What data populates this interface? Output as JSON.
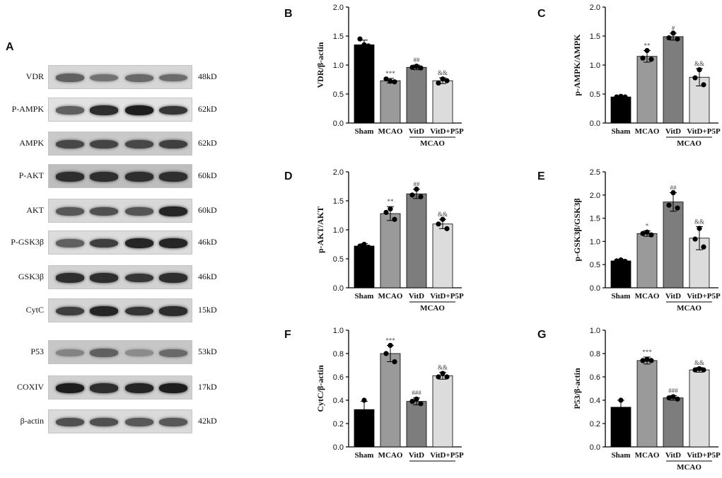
{
  "panel_a": {
    "letter": "A",
    "blots": [
      {
        "name": "VDR",
        "size": "48kD",
        "bg": "#d6d6d6",
        "intensity": [
          0.55,
          0.45,
          0.5,
          0.48
        ]
      },
      {
        "name": "P-AMPK",
        "size": "62kD",
        "bg": "#e2e2e2",
        "intensity": [
          0.55,
          0.85,
          0.95,
          0.8
        ]
      },
      {
        "name": "AMPK",
        "size": "62kD",
        "bg": "#c9c9c9",
        "intensity": [
          0.7,
          0.72,
          0.7,
          0.75
        ]
      },
      {
        "name": "P-AKT",
        "size": "60kD",
        "bg": "#bdbdbd",
        "intensity": [
          0.85,
          0.85,
          0.85,
          0.85
        ]
      },
      {
        "name": "AKT",
        "size": "60kD",
        "bg": "#d8d8d8",
        "intensity": [
          0.6,
          0.65,
          0.62,
          0.9
        ]
      },
      {
        "name": "P-GSK3β",
        "size": "46kD",
        "bg": "#dcdcdc",
        "intensity": [
          0.55,
          0.75,
          0.9,
          0.9
        ]
      },
      {
        "name": "GSK3β",
        "size": "46kD",
        "bg": "#d2d2d2",
        "intensity": [
          0.85,
          0.85,
          0.8,
          0.85
        ]
      },
      {
        "name": "CytC",
        "size": "15kD",
        "bg": "#d4d4d4",
        "intensity": [
          0.75,
          0.9,
          0.8,
          0.85
        ]
      },
      {
        "name": "P53",
        "size": "53kD",
        "bg": "#c6c6c6",
        "intensity": [
          0.35,
          0.55,
          0.3,
          0.5
        ]
      },
      {
        "name": "COXIV",
        "size": "17kD",
        "bg": "#d0d0d0",
        "intensity": [
          0.95,
          0.85,
          0.9,
          0.95
        ]
      },
      {
        "name": "β-actin",
        "size": "42kD",
        "bg": "#dadada",
        "intensity": [
          0.65,
          0.65,
          0.6,
          0.6
        ]
      }
    ]
  },
  "chart_data": [
    {
      "panel": "B",
      "type": "bar",
      "ylabel": "VDR/β-actin",
      "ylim": [
        0,
        2.0
      ],
      "yticks": [
        "0.0",
        "0.5",
        "1.0",
        "1.5",
        "2.0"
      ],
      "categories": [
        "Sham",
        "MCAO",
        "VitD",
        "VitD+P5P"
      ],
      "group_label": "MCAO",
      "values": [
        1.35,
        0.73,
        0.96,
        0.73
      ],
      "errors": [
        0.08,
        0.04,
        0.04,
        0.05
      ],
      "points": [
        [
          1.35,
          1.45,
          1.33
        ],
        [
          0.72,
          0.76,
          0.71
        ],
        [
          0.98,
          0.96,
          0.95
        ],
        [
          0.76,
          0.69,
          0.73
        ]
      ],
      "annotations": [
        "",
        "***",
        "##",
        "&&"
      ]
    },
    {
      "panel": "C",
      "type": "bar",
      "ylabel": "p-AMPK/AMPK",
      "ylim": [
        0,
        2.0
      ],
      "yticks": [
        "0.0",
        "0.5",
        "1.0",
        "1.5",
        "2.0"
      ],
      "categories": [
        "Sham",
        "MCAO",
        "VitD",
        "VitD+P5P"
      ],
      "group_label": "MCAO",
      "values": [
        0.45,
        1.15,
        1.49,
        0.79
      ],
      "errors": [
        0.02,
        0.1,
        0.06,
        0.15
      ],
      "points": [
        [
          0.46,
          0.45,
          0.45
        ],
        [
          1.25,
          1.12,
          1.1
        ],
        [
          1.55,
          1.47,
          1.45
        ],
        [
          0.92,
          0.78,
          0.66
        ]
      ],
      "annotations": [
        "",
        "**",
        "#",
        "&&"
      ]
    },
    {
      "panel": "D",
      "type": "bar",
      "ylabel": "p-AKT/AKT",
      "ylim": [
        0,
        2.0
      ],
      "yticks": [
        "0.0",
        "0.5",
        "1.0",
        "1.5",
        "2.0"
      ],
      "categories": [
        "Sham",
        "MCAO",
        "VitD",
        "VitD+P5P"
      ],
      "group_label": "MCAO",
      "values": [
        0.72,
        1.28,
        1.62,
        1.1
      ],
      "errors": [
        0.04,
        0.12,
        0.08,
        0.08
      ],
      "points": [
        [
          0.75,
          0.72,
          0.7
        ],
        [
          1.36,
          1.3,
          1.18
        ],
        [
          1.7,
          1.6,
          1.57
        ],
        [
          1.18,
          1.1,
          1.02
        ]
      ],
      "annotations": [
        "",
        "**",
        "##",
        "&&"
      ]
    },
    {
      "panel": "E",
      "type": "bar",
      "ylabel": "p-GSK3β/GSK3β",
      "ylim": [
        0,
        2.5
      ],
      "yticks": [
        "0.0",
        "0.5",
        "1.0",
        "1.5",
        "2.0",
        "2.5"
      ],
      "categories": [
        "Sham",
        "MCAO",
        "VitD",
        "VitD+P5P"
      ],
      "group_label": "MCAO",
      "values": [
        0.58,
        1.17,
        1.85,
        1.07
      ],
      "errors": [
        0.03,
        0.06,
        0.2,
        0.25
      ],
      "points": [
        [
          0.6,
          0.58,
          0.57
        ],
        [
          1.2,
          1.17,
          1.14
        ],
        [
          2.05,
          1.78,
          1.72
        ],
        [
          1.28,
          1.05,
          0.88
        ]
      ],
      "annotations": [
        "",
        "*",
        "##",
        "&&"
      ]
    },
    {
      "panel": "F",
      "type": "bar",
      "ylabel": "CytC/β-actin",
      "ylim": [
        0,
        1.0
      ],
      "yticks": [
        "0.0",
        "0.2",
        "0.4",
        "0.6",
        "0.8",
        "1.0"
      ],
      "categories": [
        "Sham",
        "MCAO",
        "VitD",
        "VitD+P5P"
      ],
      "group_label": "",
      "values": [
        0.32,
        0.8,
        0.39,
        0.61
      ],
      "errors": [
        0.07,
        0.07,
        0.03,
        0.03
      ],
      "points": [
        [
          0.4,
          0.3,
          0.29
        ],
        [
          0.87,
          0.8,
          0.73
        ],
        [
          0.41,
          0.39,
          0.37
        ],
        [
          0.63,
          0.6,
          0.6
        ]
      ],
      "annotations": [
        "",
        "***",
        "###",
        "&&"
      ]
    },
    {
      "panel": "G",
      "type": "bar",
      "ylabel": "P53/β-actin",
      "ylim": [
        0,
        1.0
      ],
      "yticks": [
        "0.0",
        "0.2",
        "0.4",
        "0.6",
        "0.8",
        "1.0"
      ],
      "categories": [
        "Sham",
        "MCAO",
        "VitD",
        "VitD+P5P"
      ],
      "group_label": "MCAO",
      "values": [
        0.34,
        0.74,
        0.42,
        0.66
      ],
      "errors": [
        0.06,
        0.03,
        0.02,
        0.02
      ],
      "points": [
        [
          0.4,
          0.31,
          0.31
        ],
        [
          0.75,
          0.74,
          0.74
        ],
        [
          0.43,
          0.42,
          0.41
        ],
        [
          0.67,
          0.66,
          0.66
        ]
      ],
      "annotations": [
        "",
        "***",
        "###",
        "&&"
      ]
    }
  ],
  "colors": {
    "bars": [
      "#000000",
      "#9a9a9a",
      "#7d7d7d",
      "#dcdcdc"
    ],
    "text": "#111111",
    "annotation": "#444444"
  }
}
